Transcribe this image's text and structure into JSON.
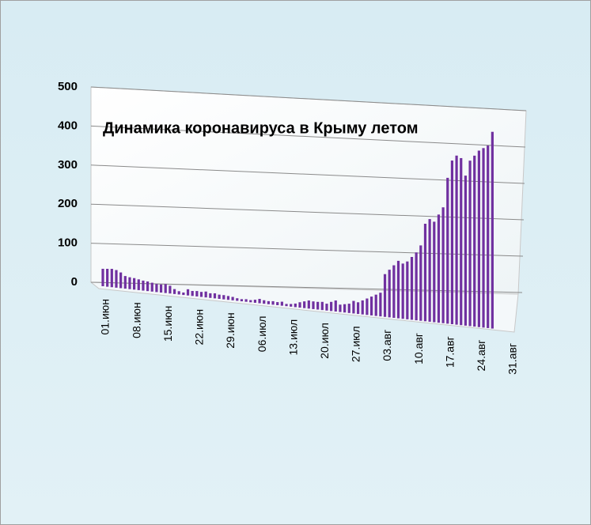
{
  "chart_data": {
    "type": "bar",
    "title": "Динамика  коронавируса в Крыму летом",
    "categories": [
      "01.июн",
      null,
      null,
      null,
      null,
      null,
      null,
      "08.июн",
      null,
      null,
      null,
      null,
      null,
      null,
      "15.июн",
      null,
      null,
      null,
      null,
      null,
      null,
      "22.июн",
      null,
      null,
      null,
      null,
      null,
      null,
      "29.июн",
      null,
      null,
      null,
      null,
      null,
      null,
      "06.июл",
      null,
      null,
      null,
      null,
      null,
      null,
      "13.июл",
      null,
      null,
      null,
      null,
      null,
      null,
      "20.июл",
      null,
      null,
      null,
      null,
      null,
      null,
      "27.июл",
      null,
      null,
      null,
      null,
      null,
      null,
      "03.авг",
      null,
      null,
      null,
      null,
      null,
      null,
      "10.авг",
      null,
      null,
      null,
      null,
      null,
      null,
      "17.авг",
      null,
      null,
      null,
      null,
      null,
      null,
      "24.авг",
      null,
      null,
      null,
      null,
      null,
      null,
      "31.авг"
    ],
    "values": [
      45,
      46,
      47,
      45,
      40,
      32,
      30,
      29,
      27,
      25,
      24,
      22,
      20,
      20,
      22,
      19,
      12,
      8,
      6,
      15,
      12,
      13,
      12,
      14,
      11,
      12,
      10,
      10,
      9,
      8,
      6,
      5,
      6,
      5,
      7,
      10,
      8,
      7,
      8,
      7,
      9,
      5,
      6,
      8,
      12,
      15,
      18,
      17,
      17,
      18,
      15,
      20,
      24,
      16,
      18,
      20,
      27,
      25,
      30,
      35,
      40,
      45,
      50,
      90,
      100,
      110,
      120,
      115,
      120,
      130,
      140,
      155,
      200,
      210,
      205,
      220,
      235,
      295,
      330,
      340,
      335,
      300,
      330,
      340,
      350,
      355,
      360,
      387,
      null,
      null,
      null,
      null
    ],
    "color": "#7030a0",
    "ylim": [
      0,
      500
    ],
    "yticks": [
      0,
      100,
      200,
      300,
      400,
      500
    ],
    "grid": true
  }
}
